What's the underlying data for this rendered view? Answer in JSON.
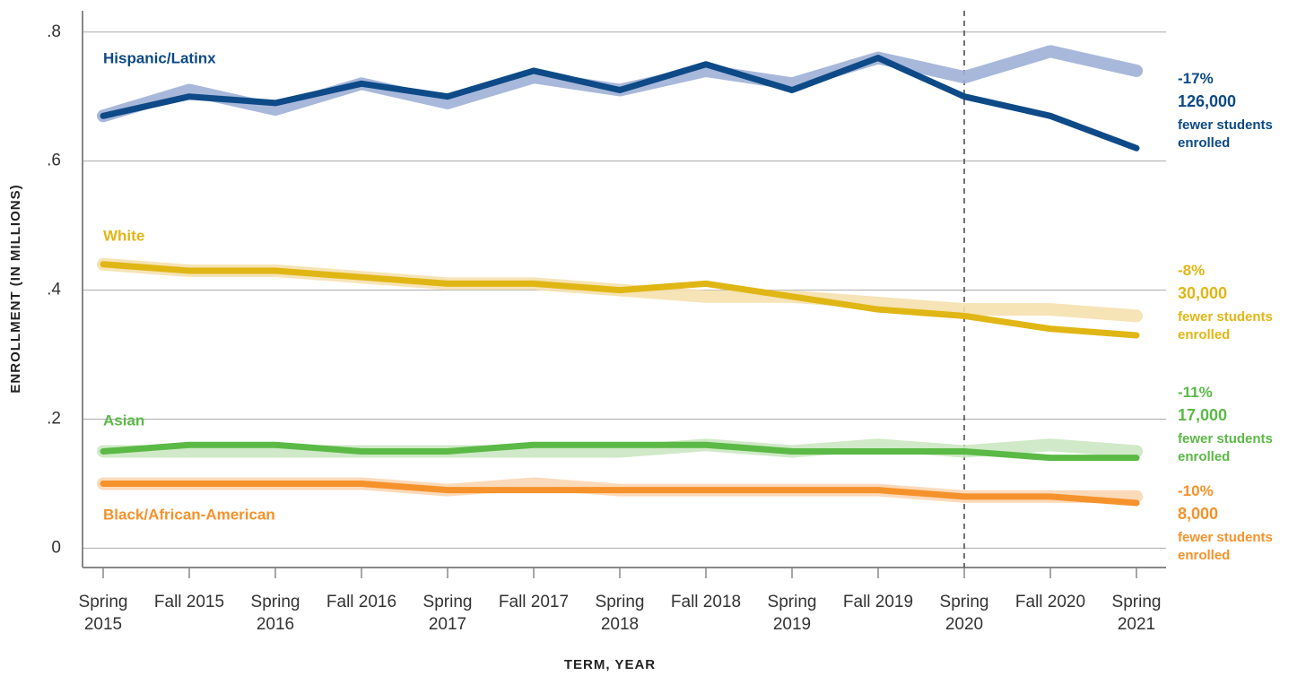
{
  "chart_data": {
    "type": "line",
    "y_label": "ENROLLMENT (IN MILLIONS)",
    "x_label": "TERM, YEAR",
    "categories": [
      "Spring 2015",
      "Fall 2015",
      "Spring 2016",
      "Fall 2016",
      "Spring 2017",
      "Fall 2017",
      "Spring 2018",
      "Fall 2018",
      "Spring 2019",
      "Fall 2019",
      "Spring 2020",
      "Fall 2020",
      "Spring 2021"
    ],
    "ylim": [
      -0.03,
      0.833
    ],
    "yticks": [
      0,
      {
        "value": 0.2,
        "label": ".2"
      },
      {
        "value": 0.4,
        "label": ".4"
      },
      {
        "value": 0.6,
        "label": ".6"
      },
      {
        "value": 0.8,
        "label": ".8"
      }
    ],
    "grid": true,
    "vline": "Spring 2020",
    "series": [
      {
        "name": "Hispanic/Latinx",
        "color": "#0d4a87",
        "band_color": "#9fb0d6",
        "values": [
          0.67,
          0.7,
          0.69,
          0.72,
          0.7,
          0.74,
          0.71,
          0.75,
          0.71,
          0.76,
          0.7,
          0.67,
          0.62
        ],
        "expected": [
          0.67,
          0.71,
          0.68,
          0.72,
          0.69,
          0.73,
          0.71,
          0.74,
          0.72,
          0.76,
          0.73,
          0.77,
          0.74
        ],
        "change": "-17%",
        "count": "126,000",
        "note": "fewer students enrolled"
      },
      {
        "name": "White",
        "color": "#e0b615",
        "band_color": "#f5e0ae",
        "values": [
          0.44,
          0.43,
          0.43,
          0.42,
          0.41,
          0.41,
          0.4,
          0.41,
          0.39,
          0.37,
          0.36,
          0.34,
          0.33
        ],
        "expected": [
          0.44,
          0.43,
          0.43,
          0.42,
          0.41,
          0.41,
          0.4,
          0.39,
          0.39,
          0.38,
          0.37,
          0.37,
          0.36
        ],
        "change": "-8%",
        "count": "30,000",
        "note": "fewer students enrolled"
      },
      {
        "name": "Asian",
        "color": "#5bb946",
        "band_color": "#cbe7c2",
        "values": [
          0.15,
          0.16,
          0.16,
          0.15,
          0.15,
          0.16,
          0.16,
          0.16,
          0.15,
          0.15,
          0.15,
          0.14,
          0.14
        ],
        "expected": [
          0.15,
          0.15,
          0.15,
          0.15,
          0.15,
          0.15,
          0.15,
          0.16,
          0.15,
          0.16,
          0.15,
          0.16,
          0.15
        ],
        "change": "-11%",
        "count": "17,000",
        "note": "fewer students enrolled"
      },
      {
        "name": "Black/African-American",
        "color": "#f5922b",
        "band_color": "#fbd6b2",
        "values": [
          0.1,
          0.1,
          0.1,
          0.1,
          0.09,
          0.09,
          0.09,
          0.09,
          0.09,
          0.09,
          0.08,
          0.08,
          0.07
        ],
        "expected": [
          0.1,
          0.1,
          0.1,
          0.1,
          0.09,
          0.1,
          0.09,
          0.09,
          0.09,
          0.09,
          0.08,
          0.08,
          0.08
        ],
        "change": "-10%",
        "count": "8,000",
        "note": "fewer students enrolled"
      }
    ]
  }
}
